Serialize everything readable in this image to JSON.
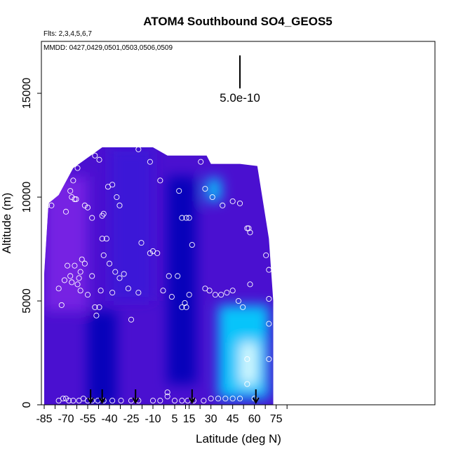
{
  "chart_data": {
    "type": "heatmap",
    "title": "ATOM4 Southbound SO4_GEOS5",
    "subtitle_flights": "Flts: 2,3,4,5,6,7",
    "subtitle_dates": "MMDD: 0427,0429,0501,0503,0506,0509",
    "xlabel": "Latitude (deg N)",
    "ylabel": "Altitude (m)",
    "xlim": [
      -87,
      88
    ],
    "ylim": [
      0,
      17500
    ],
    "x_ticks": [
      -85,
      -70,
      -55,
      -40,
      -25,
      -10,
      5,
      15,
      30,
      45,
      60,
      75
    ],
    "x_tick_labels": [
      "-85",
      "-70",
      "-55",
      "-40",
      "-25",
      "-10",
      "5",
      "15",
      "30",
      "45",
      "60",
      "75"
    ],
    "y_ticks": [
      0,
      5000,
      10000,
      15000
    ],
    "y_tick_labels": [
      "0",
      "5000",
      "10000",
      "15000"
    ],
    "scale_bar_label": "5.0e-10",
    "colors": {
      "low": "#0000b8",
      "mid_purple": "#7a22e6",
      "high": "#00d8ff",
      "peak": "#e8ffff",
      "points": "#ffffff",
      "frame": "#000000"
    },
    "grid": false,
    "field_extent": {
      "lat": [
        -85,
        73
      ],
      "top_alt_by_lat": [
        [
          -85,
          6300
        ],
        [
          -82,
          9700
        ],
        [
          -75,
          10100
        ],
        [
          -65,
          11400
        ],
        [
          -55,
          11900
        ],
        [
          -45,
          12400
        ],
        [
          -30,
          12400
        ],
        [
          -10,
          12400
        ],
        [
          0,
          12000
        ],
        [
          15,
          12000
        ],
        [
          27,
          12000
        ],
        [
          30,
          11600
        ],
        [
          50,
          11600
        ],
        [
          62,
          11500
        ],
        [
          70,
          8000
        ],
        [
          73,
          5000
        ]
      ]
    },
    "field_regions": [
      {
        "lat": [
          -85,
          -55
        ],
        "alt": [
          4500,
          11000
        ],
        "level": "purple"
      },
      {
        "lat": [
          -55,
          -35
        ],
        "alt": [
          0,
          4500
        ],
        "level": "low"
      },
      {
        "lat": [
          -40,
          -10
        ],
        "alt": [
          5000,
          12400
        ],
        "level": "blue-purple"
      },
      {
        "lat": [
          0,
          20
        ],
        "alt": [
          1000,
          11000
        ],
        "level": "low"
      },
      {
        "lat": [
          35,
          70
        ],
        "alt": [
          300,
          4800
        ],
        "level": "high"
      },
      {
        "lat": [
          50,
          62
        ],
        "alt": [
          1000,
          3000
        ],
        "level": "peak"
      },
      {
        "lat": [
          27,
          37
        ],
        "alt": [
          9800,
          10900
        ],
        "level": "high"
      }
    ],
    "sample_points": [
      [
        -83,
        9600
      ],
      [
        -80,
        9600
      ],
      [
        -75,
        5600
      ],
      [
        -73,
        4800
      ],
      [
        -70,
        9300
      ],
      [
        -67,
        10300
      ],
      [
        -66,
        10000
      ],
      [
        -65,
        10800
      ],
      [
        -64,
        9900
      ],
      [
        -63,
        9900
      ],
      [
        -62,
        11400
      ],
      [
        -60,
        5500
      ],
      [
        -58,
        12000
      ],
      [
        -57,
        9600
      ],
      [
        -55,
        9500
      ],
      [
        -52,
        9000
      ],
      [
        -50,
        12000
      ],
      [
        -47,
        11800
      ],
      [
        -45,
        9100
      ],
      [
        -44,
        9200
      ],
      [
        -41,
        10500
      ],
      [
        -38,
        10600
      ],
      [
        -35,
        10000
      ],
      [
        -33,
        9600
      ],
      [
        -20,
        12300
      ],
      [
        -12,
        11700
      ],
      [
        -5,
        10800
      ],
      [
        8,
        10300
      ],
      [
        10,
        9000
      ],
      [
        13,
        9000
      ],
      [
        15,
        9000
      ],
      [
        23,
        11700
      ],
      [
        26,
        10400
      ],
      [
        31,
        10000
      ],
      [
        38,
        9600
      ],
      [
        45,
        9800
      ],
      [
        50,
        9700
      ],
      [
        55,
        8500
      ],
      [
        56,
        8500
      ],
      [
        57,
        8300
      ],
      [
        -71,
        6000
      ],
      [
        -69,
        6700
      ],
      [
        -67,
        6200
      ],
      [
        -66,
        5900
      ],
      [
        -64,
        6700
      ],
      [
        -62,
        5800
      ],
      [
        -61,
        6100
      ],
      [
        -60,
        6400
      ],
      [
        -59,
        7000
      ],
      [
        -57,
        6800
      ],
      [
        -55,
        5300
      ],
      [
        -52,
        6200
      ],
      [
        -50,
        4700
      ],
      [
        -49,
        4300
      ],
      [
        -47,
        4700
      ],
      [
        -46,
        5500
      ],
      [
        -45,
        8000
      ],
      [
        -44,
        7200
      ],
      [
        -42,
        8000
      ],
      [
        -40,
        6800
      ],
      [
        -38,
        5400
      ],
      [
        -36,
        6400
      ],
      [
        -33,
        6100
      ],
      [
        -30,
        6300
      ],
      [
        -27,
        5600
      ],
      [
        -25,
        4100
      ],
      [
        -20,
        5400
      ],
      [
        -18,
        7800
      ],
      [
        -12,
        7300
      ],
      [
        -10,
        7400
      ],
      [
        -7,
        7300
      ],
      [
        -3,
        5500
      ],
      [
        1,
        6200
      ],
      [
        3,
        5200
      ],
      [
        7,
        6200
      ],
      [
        10,
        4700
      ],
      [
        12,
        4900
      ],
      [
        13,
        4700
      ],
      [
        15,
        5300
      ],
      [
        17,
        7700
      ],
      [
        26,
        5600
      ],
      [
        29,
        5500
      ],
      [
        33,
        5300
      ],
      [
        37,
        5300
      ],
      [
        41,
        5400
      ],
      [
        45,
        5500
      ],
      [
        49,
        5000
      ],
      [
        52,
        4700
      ],
      [
        57,
        5800
      ],
      [
        -75,
        200
      ],
      [
        -72,
        300
      ],
      [
        -70,
        300
      ],
      [
        -68,
        200
      ],
      [
        -65,
        200
      ],
      [
        -61,
        200
      ],
      [
        -58,
        300
      ],
      [
        -55,
        200
      ],
      [
        -52,
        200
      ],
      [
        -48,
        200
      ],
      [
        -44,
        200
      ],
      [
        -38,
        200
      ],
      [
        -32,
        200
      ],
      [
        -25,
        200
      ],
      [
        -20,
        200
      ],
      [
        -10,
        200
      ],
      [
        -5,
        200
      ],
      [
        0,
        400
      ],
      [
        0,
        600
      ],
      [
        5,
        200
      ],
      [
        10,
        200
      ],
      [
        14,
        200
      ],
      [
        18,
        200
      ],
      [
        25,
        200
      ],
      [
        30,
        300
      ],
      [
        35,
        300
      ],
      [
        40,
        300
      ],
      [
        45,
        300
      ],
      [
        50,
        300
      ],
      [
        55,
        1000
      ],
      [
        55,
        2200
      ],
      [
        60,
        300
      ],
      [
        70,
        2200
      ],
      [
        70,
        3900
      ],
      [
        70,
        5100
      ],
      [
        70,
        6500
      ],
      [
        68,
        7200
      ]
    ],
    "arrow_latitudes": [
      -53,
      -45,
      -22,
      17,
      61
    ]
  }
}
